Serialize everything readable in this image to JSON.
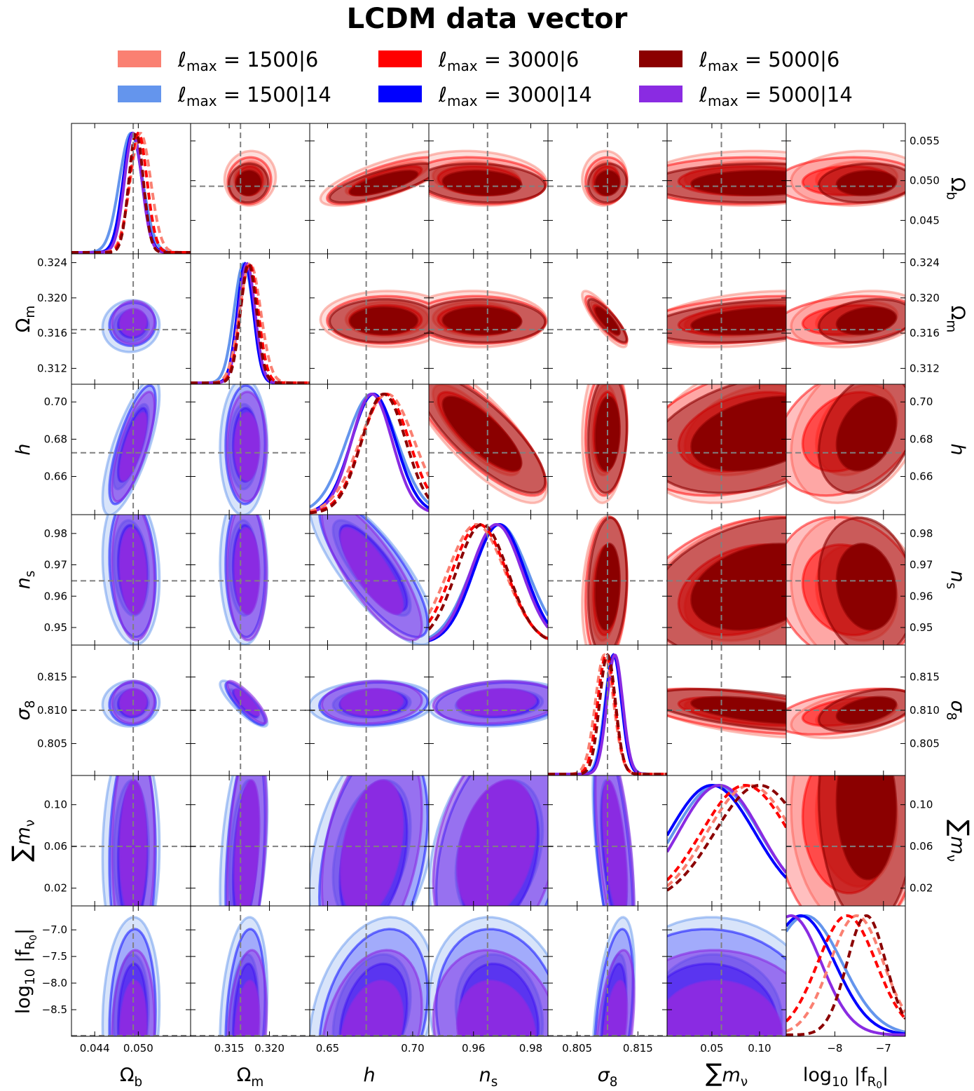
{
  "chart_data": {
    "type": "corner",
    "title": "LCDM data vector",
    "colors": {
      "1500|6": "#fa8072",
      "1500|14": "#6495ed",
      "3000|6": "#ff0000",
      "3000|14": "#0000ff",
      "5000|6": "#8b0000",
      "5000|14": "#8a2be2",
      "fiducial_line": "#808080"
    },
    "legend": [
      {
        "key": "1500|6",
        "label": "ℓmax = 1500|6"
      },
      {
        "key": "3000|6",
        "label": "ℓmax = 3000|6"
      },
      {
        "key": "5000|6",
        "label": "ℓmax = 5000|6"
      },
      {
        "key": "1500|14",
        "label": "ℓmax = 1500|14"
      },
      {
        "key": "3000|14",
        "label": "ℓmax = 3000|14"
      },
      {
        "key": "5000|14",
        "label": "ℓmax = 5000|14"
      }
    ],
    "lower_triangle_series": [
      "1500|14",
      "3000|14",
      "5000|14"
    ],
    "upper_triangle_series": [
      "1500|6",
      "3000|6",
      "5000|6"
    ],
    "parameters": [
      {
        "name": "omega_b",
        "label": "Ωb",
        "range": [
          0.0408,
          0.0572
        ],
        "fiducial": 0.0493,
        "ticks": [
          0.044,
          0.05
        ],
        "tick_labels": [
          "0.044",
          "0.050"
        ],
        "right_ticks": [
          0.045,
          0.05,
          0.055
        ],
        "right_tick_labels": [
          "0.045",
          "0.050",
          "0.055"
        ],
        "sigma": {
          "1500|14": 0.0016,
          "3000|14": 0.0013,
          "5000|14": 0.0012,
          "1500|6": 0.0014,
          "3000|6": 0.0012,
          "5000|6": 0.001
        },
        "mean": {
          "1500|14": 0.049,
          "3000|14": 0.0492,
          "5000|14": 0.0493,
          "1500|6": 0.0503,
          "3000|6": 0.05,
          "5000|6": 0.0497
        }
      },
      {
        "name": "omega_m",
        "label": "Ωm",
        "range": [
          0.3102,
          0.325
        ],
        "fiducial": 0.3164,
        "ticks": [
          0.315,
          0.32
        ],
        "tick_labels": [
          "0.315",
          "0.320"
        ],
        "left_ticks": [
          0.312,
          0.316,
          0.32,
          0.324
        ],
        "left_tick_labels": [
          "0.312",
          "0.316",
          "0.320",
          "0.324"
        ],
        "sigma": {
          "1500|14": 0.0012,
          "3000|14": 0.001,
          "5000|14": 0.001,
          "1500|6": 0.0013,
          "3000|6": 0.0011,
          "5000|6": 0.001
        },
        "mean": {
          "1500|14": 0.3168,
          "3000|14": 0.317,
          "5000|14": 0.3172,
          "1500|6": 0.3176,
          "3000|6": 0.3175,
          "5000|6": 0.3174
        }
      },
      {
        "name": "h",
        "label": "h",
        "range": [
          0.6395,
          0.7095
        ],
        "fiducial": 0.6727,
        "ticks": [
          0.65,
          0.7
        ],
        "tick_labels": [
          "0.65",
          "0.70"
        ],
        "left_ticks": [
          0.66,
          0.68,
          0.7
        ],
        "left_tick_labels": [
          "0.66",
          "0.68",
          "0.70"
        ],
        "sigma": {
          "1500|14": 0.015,
          "3000|14": 0.013,
          "5000|14": 0.012,
          "1500|6": 0.016,
          "3000|6": 0.014,
          "5000|6": 0.013
        },
        "mean": {
          "1500|14": 0.676,
          "3000|14": 0.677,
          "5000|14": 0.676,
          "1500|6": 0.685,
          "3000|6": 0.684,
          "5000|6": 0.683
        }
      },
      {
        "name": "n_s",
        "label": "ns",
        "range": [
          0.9444,
          0.986
        ],
        "fiducial": 0.9649,
        "ticks": [
          0.96,
          0.98
        ],
        "tick_labels": [
          "0.96",
          "0.98"
        ],
        "left_ticks": [
          0.95,
          0.96,
          0.97,
          0.98
        ],
        "left_tick_labels": [
          "0.95",
          "0.96",
          "0.97",
          "0.98"
        ],
        "sigma": {
          "1500|14": 0.01,
          "3000|14": 0.009,
          "5000|14": 0.009,
          "1500|6": 0.01,
          "3000|6": 0.0095,
          "5000|6": 0.009
        },
        "mean": {
          "1500|14": 0.969,
          "3000|14": 0.969,
          "5000|14": 0.968,
          "1500|6": 0.961,
          "3000|6": 0.962,
          "5000|6": 0.963
        }
      },
      {
        "name": "sigma_8",
        "label": "σ8",
        "range": [
          0.8002,
          0.8198
        ],
        "fiducial": 0.81,
        "ticks": [
          0.805,
          0.815
        ],
        "tick_labels": [
          "0.805",
          "0.815"
        ],
        "left_ticks": [
          0.805,
          0.81,
          0.815
        ],
        "left_tick_labels": [
          "0.805",
          "0.810",
          "0.815"
        ],
        "sigma": {
          "1500|14": 0.0014,
          "3000|14": 0.0013,
          "5000|14": 0.0013,
          "1500|6": 0.0015,
          "3000|6": 0.0014,
          "5000|6": 0.0013
        },
        "mean": {
          "1500|14": 0.811,
          "3000|14": 0.811,
          "5000|14": 0.8112,
          "1500|6": 0.8095,
          "3000|6": 0.8098,
          "5000|6": 0.81
        }
      },
      {
        "name": "sum_mnu",
        "label": "∑mν",
        "range": [
          0.003,
          0.128
        ],
        "fiducial": 0.06,
        "ticks": [
          0.05,
          0.1
        ],
        "tick_labels": [
          "0.05",
          "0.10"
        ],
        "left_ticks": [
          0.02,
          0.06,
          0.1
        ],
        "left_tick_labels": [
          "0.02",
          "0.06",
          "0.10"
        ],
        "sigma": {
          "1500|14": 0.045,
          "3000|14": 0.045,
          "5000|14": 0.043,
          "1500|6": 0.045,
          "3000|6": 0.046,
          "5000|6": 0.047
        },
        "mean": {
          "1500|14": 0.055,
          "3000|14": 0.05,
          "5000|14": 0.058,
          "1500|6": 0.09,
          "3000|6": 0.085,
          "5000|6": 0.1
        }
      },
      {
        "name": "log10_fR0",
        "label": "log10|fR0|",
        "range": [
          -9.0,
          -6.55
        ],
        "fiducial": -9.0,
        "ticks": [
          -8,
          -7
        ],
        "tick_labels": [
          "−8",
          "−7"
        ],
        "left_ticks": [
          -8.5,
          -8.0,
          -7.5,
          -7.0
        ],
        "left_tick_labels": [
          "−8.5",
          "−8.0",
          "−7.5",
          "−7.0"
        ],
        "sigma": {
          "1500|14": 0.75,
          "3000|14": 0.7,
          "5000|14": 0.62,
          "1500|6": 0.55,
          "3000|6": 0.6,
          "5000|6": 0.4
        },
        "mean": {
          "1500|14": -8.6,
          "3000|14": -8.7,
          "5000|14": -8.9,
          "1500|6": -7.55,
          "3000|6": -7.75,
          "5000|6": -7.35
        }
      }
    ],
    "correlations": {
      "omega_b|omega_m": 0.05,
      "omega_b|h": 0.75,
      "omega_b|n_s": -0.15,
      "omega_b|sigma_8": 0.05,
      "omega_b|sum_mnu": 0.05,
      "omega_b|log10_fR0": 0.1,
      "omega_m|h": 0.02,
      "omega_m|n_s": -0.05,
      "omega_m|sigma_8": -0.85,
      "omega_m|sum_mnu": 0.35,
      "omega_m|log10_fR0": 0.25,
      "h|n_s": -0.8,
      "h|sigma_8": 0.1,
      "h|sum_mnu": 0.35,
      "h|log10_fR0": 0.3,
      "n_s|sigma_8": 0.15,
      "n_s|sum_mnu": 0.3,
      "n_s|log10_fR0": -0.15,
      "sigma_8|sum_mnu": -0.55,
      "sigma_8|log10_fR0": 0.45,
      "sum_mnu|log10_fR0": -0.05
    }
  }
}
